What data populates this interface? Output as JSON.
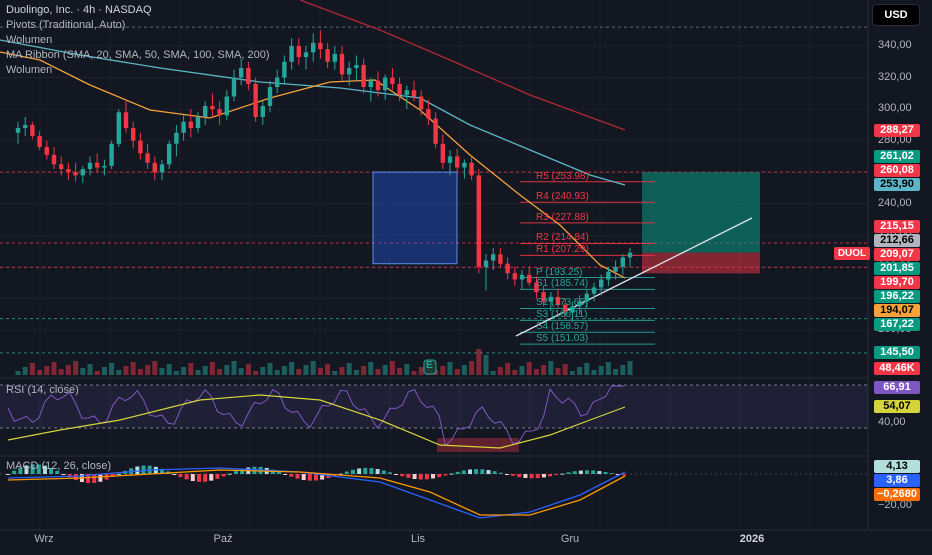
{
  "header": {
    "symbol_line": "Duolingo, Inc. · 4h · NASDAQ",
    "indicators": [
      "Pivots (Traditional, Auto)",
      "Wolumen",
      "MA Ribbon (SMA, 20, SMA, 50, SMA, 100, SMA, 200)",
      "Wolumen"
    ],
    "currency_button": "USD",
    "symbol_tag": "DUOL"
  },
  "colors": {
    "background": "#131722",
    "up": "#26a69a",
    "down": "#f23645",
    "grid": "#1e222d",
    "sma20": "#f7a13a",
    "sma50": "#5bb7c7",
    "sma200": "#b22833",
    "rsi_line": "#7e57c2",
    "rsi_ma": "#d4d43a",
    "macd_line": "#2962ff",
    "macd_signal": "#ff9800"
  },
  "price_axis": {
    "labels": [
      "340,00",
      "320,00",
      "300,00",
      "280,00",
      "260,00",
      "240,00",
      "220,00",
      "200,00",
      "180,00",
      "160,00"
    ],
    "tags": [
      {
        "text": "288,27",
        "bg": "#f23645",
        "fg": "#ffffff"
      },
      {
        "text": "261,02",
        "bg": "#089981",
        "fg": "#ffffff"
      },
      {
        "text": "260,08",
        "bg": "#f23645",
        "fg": "#ffffff"
      },
      {
        "text": "253,90",
        "bg": "#5bb7c7",
        "fg": "#000000"
      },
      {
        "text": "215,15",
        "bg": "#f23645",
        "fg": "#ffffff"
      },
      {
        "text": "212,66",
        "bg": "#b2b5be",
        "fg": "#000000"
      },
      {
        "text": "209,07",
        "bg": "#f23645",
        "fg": "#ffffff"
      },
      {
        "text": "201,85",
        "bg": "#089981",
        "fg": "#ffffff"
      },
      {
        "text": "199,70",
        "bg": "#f23645",
        "fg": "#ffffff"
      },
      {
        "text": "196,22",
        "bg": "#089981",
        "fg": "#ffffff"
      },
      {
        "text": "194,07",
        "bg": "#f7a13a",
        "fg": "#000000"
      },
      {
        "text": "167,22",
        "bg": "#089981",
        "fg": "#ffffff"
      },
      {
        "text": "145,50",
        "bg": "#089981",
        "fg": "#ffffff"
      },
      {
        "text": "48,46K",
        "bg": "#f23645",
        "fg": "#ffffff"
      }
    ]
  },
  "pivots": [
    {
      "label": "R5 (253.98)",
      "value": 253.98,
      "color": "#f23645"
    },
    {
      "label": "R4 (240.93)",
      "value": 240.93,
      "color": "#f23645"
    },
    {
      "label": "R3 (227.88)",
      "value": 227.88,
      "color": "#f23645"
    },
    {
      "label": "R2 (214.84)",
      "value": 214.84,
      "color": "#f23645"
    },
    {
      "label": "R1 (207.29)",
      "value": 207.29,
      "color": "#f23645"
    },
    {
      "label": "P (193.25)",
      "value": 193.25,
      "color": "#26a69a"
    },
    {
      "label": "S1 (185.74)",
      "value": 185.74,
      "color": "#26a69a"
    },
    {
      "label": "S2 (173.66)",
      "value": 173.66,
      "color": "#26a69a"
    },
    {
      "label": "S3 (166.11)",
      "value": 166.11,
      "color": "#26a69a"
    },
    {
      "label": "S4 (158.57)",
      "value": 158.57,
      "color": "#26a69a"
    },
    {
      "label": "S5 (151.03)",
      "value": 151.03,
      "color": "#26a69a"
    }
  ],
  "rsi": {
    "legend": "RSI (14, close)",
    "axis_label": "40,00",
    "tags": [
      {
        "text": "66,91",
        "bg": "#7e57c2",
        "fg": "#ffffff"
      },
      {
        "text": "54,07",
        "bg": "#d4d43a",
        "fg": "#000000"
      }
    ]
  },
  "macd": {
    "legend": "MACD (12, 26, close)",
    "axis_label": "−20,00",
    "tags": [
      {
        "text": "4,13",
        "bg": "#b2dfdb",
        "fg": "#000000"
      },
      {
        "text": "3,86",
        "bg": "#2962ff",
        "fg": "#ffffff"
      },
      {
        "text": "−0,2680",
        "bg": "#ff6d00",
        "fg": "#ffffff"
      }
    ]
  },
  "time_axis": [
    "Wrz",
    "Paź",
    "Lis",
    "Gru",
    "2026"
  ],
  "marker": "E",
  "chart_data": {
    "type": "candlestick",
    "timeframe": "4h",
    "y_range": [
      145,
      352
    ],
    "candles": [
      [
        285,
        292,
        278,
        288
      ],
      [
        288,
        295,
        283,
        290
      ],
      [
        290,
        292,
        281,
        283
      ],
      [
        283,
        286,
        274,
        276
      ],
      [
        276,
        280,
        268,
        271
      ],
      [
        271,
        276,
        262,
        265
      ],
      [
        265,
        270,
        258,
        262
      ],
      [
        262,
        266,
        255,
        260
      ],
      [
        260,
        266,
        254,
        258
      ],
      [
        258,
        264,
        253,
        262
      ],
      [
        262,
        270,
        258,
        266
      ],
      [
        266,
        272,
        260,
        263
      ],
      [
        263,
        268,
        258,
        264
      ],
      [
        264,
        280,
        262,
        278
      ],
      [
        278,
        300,
        276,
        298
      ],
      [
        298,
        305,
        285,
        288
      ],
      [
        288,
        292,
        275,
        280
      ],
      [
        280,
        285,
        268,
        272
      ],
      [
        272,
        278,
        262,
        266
      ],
      [
        266,
        270,
        255,
        260
      ],
      [
        260,
        268,
        255,
        265
      ],
      [
        265,
        280,
        262,
        278
      ],
      [
        278,
        290,
        270,
        285
      ],
      [
        285,
        296,
        280,
        292
      ],
      [
        292,
        300,
        282,
        288
      ],
      [
        288,
        298,
        285,
        295
      ],
      [
        295,
        305,
        290,
        302
      ],
      [
        302,
        310,
        295,
        300
      ],
      [
        300,
        305,
        290,
        296
      ],
      [
        296,
        312,
        293,
        308
      ],
      [
        308,
        325,
        305,
        320
      ],
      [
        320,
        332,
        315,
        326
      ],
      [
        326,
        330,
        312,
        316
      ],
      [
        316,
        320,
        292,
        295
      ],
      [
        295,
        305,
        290,
        302
      ],
      [
        302,
        318,
        298,
        314
      ],
      [
        314,
        325,
        310,
        320
      ],
      [
        320,
        334,
        316,
        330
      ],
      [
        330,
        345,
        325,
        340
      ],
      [
        340,
        345,
        328,
        333
      ],
      [
        333,
        340,
        325,
        336
      ],
      [
        336,
        348,
        330,
        342
      ],
      [
        342,
        350,
        332,
        338
      ],
      [
        338,
        342,
        326,
        330
      ],
      [
        330,
        340,
        325,
        335
      ],
      [
        335,
        340,
        318,
        322
      ],
      [
        322,
        330,
        315,
        326
      ],
      [
        326,
        334,
        318,
        328
      ],
      [
        328,
        332,
        310,
        314
      ],
      [
        314,
        320,
        305,
        318
      ],
      [
        318,
        324,
        308,
        312
      ],
      [
        312,
        322,
        306,
        320
      ],
      [
        320,
        326,
        312,
        316
      ],
      [
        316,
        320,
        305,
        309
      ],
      [
        309,
        315,
        300,
        312
      ],
      [
        312,
        318,
        305,
        308
      ],
      [
        308,
        312,
        296,
        300
      ],
      [
        300,
        306,
        290,
        294
      ],
      [
        294,
        298,
        275,
        278
      ],
      [
        278,
        284,
        262,
        266
      ],
      [
        266,
        274,
        258,
        270
      ],
      [
        270,
        275,
        260,
        263
      ],
      [
        263,
        268,
        256,
        266
      ],
      [
        266,
        270,
        255,
        258
      ],
      [
        258,
        262,
        196,
        200
      ],
      [
        200,
        208,
        185,
        204
      ],
      [
        204,
        212,
        198,
        208
      ],
      [
        208,
        212,
        200,
        202
      ],
      [
        202,
        206,
        192,
        196
      ],
      [
        196,
        200,
        188,
        192
      ],
      [
        192,
        198,
        186,
        195
      ],
      [
        195,
        200,
        188,
        190
      ],
      [
        190,
        194,
        180,
        184
      ],
      [
        184,
        188,
        175,
        178
      ],
      [
        178,
        184,
        172,
        181
      ],
      [
        181,
        186,
        174,
        176
      ],
      [
        176,
        180,
        168,
        171
      ],
      [
        171,
        178,
        165,
        175
      ],
      [
        175,
        182,
        170,
        178
      ],
      [
        178,
        186,
        174,
        183
      ],
      [
        183,
        190,
        178,
        187
      ],
      [
        187,
        195,
        182,
        192
      ],
      [
        192,
        200,
        188,
        197
      ],
      [
        197,
        204,
        192,
        200
      ],
      [
        200,
        208,
        195,
        206
      ],
      [
        206,
        212,
        200,
        209
      ]
    ],
    "sma20_end": 194.07,
    "sma50_end": 253.9,
    "sma200_end": 288.27,
    "last_price": 209.07,
    "rsi_last": 66.91,
    "rsi_ma_last": 54.07,
    "macd_last": 3.86,
    "macd_signal_last": 4.13,
    "macd_hist_last": -0.268,
    "position": {
      "entry": 209.07,
      "target": 260.08,
      "stop": 199.7
    }
  }
}
